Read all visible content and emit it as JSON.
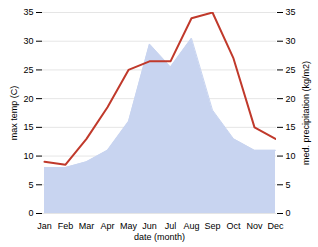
{
  "chart_data": {
    "type": "line",
    "categories": [
      "Jan",
      "Feb",
      "Mar",
      "Apr",
      "May",
      "Jun",
      "Jul",
      "Aug",
      "Sep",
      "Oct",
      "Nov",
      "Dec"
    ],
    "series": [
      {
        "type": "area",
        "color": "#c8d4f0",
        "values": [
          8.0,
          8.0,
          9.0,
          11.0,
          16.0,
          29.5,
          25.5,
          30.5,
          18.0,
          13.0,
          11.0,
          11.0
        ]
      },
      {
        "type": "line",
        "color": "#c0392b",
        "values": [
          9.0,
          8.5,
          13.0,
          18.5,
          25.0,
          26.5,
          26.5,
          34.0,
          35.0,
          27.0,
          15.0,
          13.0
        ]
      }
    ],
    "xlabel": "date (month)",
    "ylabel": "max temp (C)",
    "y2label": "med. precipitation (kg/m2)",
    "ylim": [
      0,
      35
    ],
    "yticks": [
      0,
      5,
      10,
      15,
      20,
      25,
      30,
      35
    ],
    "y2lim": [
      0,
      35
    ],
    "y2ticks": [
      0,
      5,
      10,
      15,
      20,
      25,
      30,
      35
    ],
    "grid": true
  }
}
